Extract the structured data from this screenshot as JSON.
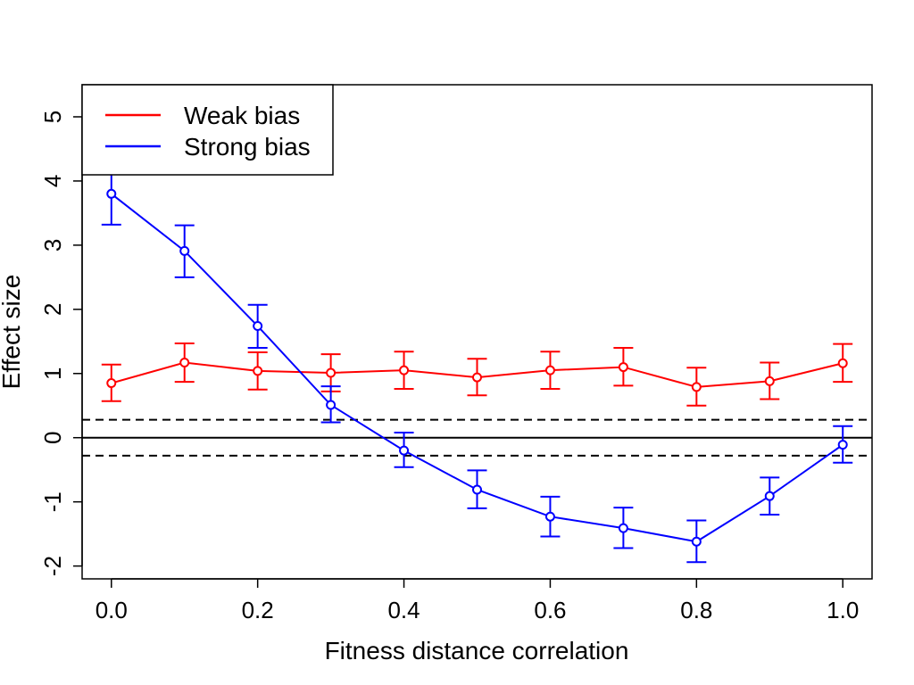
{
  "chart_data": {
    "type": "line",
    "title": "",
    "xlabel": "Fitness distance correlation",
    "ylabel": "Effect size",
    "xlim": [
      -0.04,
      1.04
    ],
    "ylim": [
      -2.2,
      5.5
    ],
    "x_ticks": [
      "0.0",
      "0.2",
      "0.4",
      "0.6",
      "0.8",
      "1.0"
    ],
    "y_ticks": [
      "-2",
      "-1",
      "0",
      "1",
      "2",
      "3",
      "4",
      "5"
    ],
    "x": [
      0.0,
      0.1,
      0.2,
      0.3,
      0.4,
      0.5,
      0.6,
      0.7,
      0.8,
      0.9,
      1.0
    ],
    "reference_lines": [
      {
        "y": 0,
        "style": "solid"
      },
      {
        "y": 0.28,
        "style": "dashed"
      },
      {
        "y": -0.28,
        "style": "dashed"
      }
    ],
    "legend_position": "top-left",
    "series": [
      {
        "name": "Weak bias",
        "color": "#ff0000",
        "values": [
          0.85,
          1.17,
          1.04,
          1.01,
          1.05,
          0.94,
          1.05,
          1.1,
          0.79,
          0.88,
          1.16
        ],
        "lower": [
          0.57,
          0.87,
          0.75,
          0.72,
          0.76,
          0.66,
          0.76,
          0.81,
          0.5,
          0.6,
          0.87
        ],
        "upper": [
          1.14,
          1.47,
          1.33,
          1.3,
          1.34,
          1.23,
          1.34,
          1.4,
          1.09,
          1.17,
          1.46
        ]
      },
      {
        "name": "Strong bias",
        "color": "#0000ff",
        "values": [
          3.8,
          2.91,
          1.74,
          0.51,
          -0.2,
          -0.81,
          -1.23,
          -1.41,
          -1.62,
          -0.91,
          -0.11
        ],
        "lower": [
          3.32,
          2.5,
          1.4,
          0.24,
          -0.46,
          -1.1,
          -1.54,
          -1.72,
          -1.94,
          -1.2,
          -0.39
        ],
        "upper": [
          4.25,
          3.31,
          2.07,
          0.8,
          0.08,
          -0.51,
          -0.92,
          -1.09,
          -1.29,
          -0.62,
          0.18
        ]
      }
    ]
  }
}
